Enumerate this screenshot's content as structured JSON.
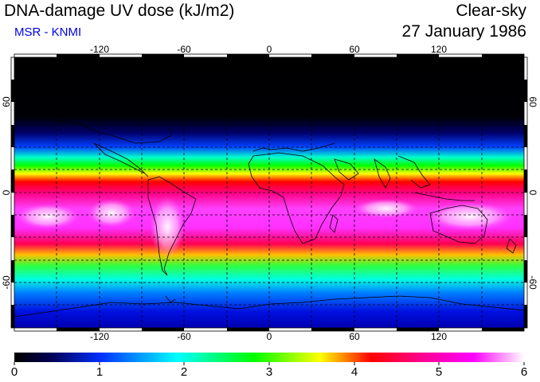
{
  "header": {
    "title": "DNA-damage UV dose (kJ/m2)",
    "source": "MSR - KNMI",
    "sky_condition": "Clear-sky",
    "date": "27 January 1986"
  },
  "map": {
    "longitude_ticks": [
      "-120",
      "-60",
      "0",
      "60",
      "120"
    ],
    "latitude_ticks": [
      "60",
      "0",
      "-60"
    ],
    "grid_style": "dashed",
    "coastlines": "world"
  },
  "colorbar": {
    "min": 0,
    "max": 6,
    "labels": [
      "0",
      "1",
      "2",
      "3",
      "4",
      "5",
      "6"
    ],
    "colors": [
      "#000000",
      "#00006e",
      "#0050ff",
      "#00ffff",
      "#00ff00",
      "#ffff00",
      "#ff0000",
      "#ff0090",
      "#ff00ff",
      "#ffffff"
    ]
  },
  "colors": {
    "subtitle": "#0000ee"
  }
}
